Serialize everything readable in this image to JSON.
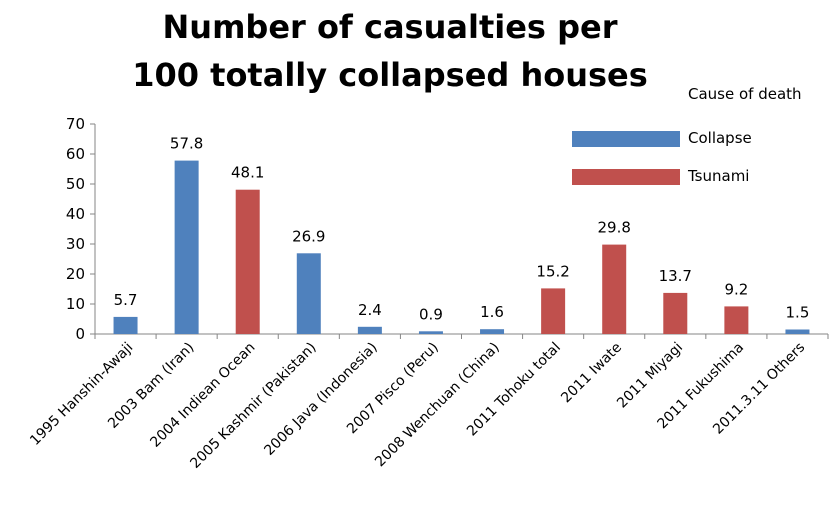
{
  "chart_data": {
    "type": "bar",
    "title_lines": [
      "Number of casualties per",
      "100 totally collapsed houses"
    ],
    "xlabel": "",
    "ylabel": "",
    "ylim": [
      0,
      70
    ],
    "yticks": [
      0,
      10,
      20,
      30,
      40,
      50,
      60,
      70
    ],
    "grid": false,
    "legend": {
      "title": "Cause of death",
      "position": "top-right",
      "entries": [
        {
          "name": "Collapse",
          "color": "#4F81BD"
        },
        {
          "name": "Tsunami",
          "color": "#C0504D"
        }
      ]
    },
    "categories": [
      "1995 Hanshin-Awaji",
      "2003 Bam (Iran)",
      "2004 Indiean Ocean",
      "2005 Kashmir (Pakistan)",
      "2006 Java (Indonesia)",
      "2007 Pisco (Peru)",
      "2008 Wenchuan (China)",
      "2011 Tohoku total",
      "2011 Iwate",
      "2011 Miyagi",
      "2011 Fukushima",
      "2011.3.11 Others"
    ],
    "values": [
      5.7,
      57.8,
      48.1,
      26.9,
      2.4,
      0.9,
      1.6,
      15.2,
      29.8,
      13.7,
      9.2,
      1.5
    ],
    "value_labels": [
      "5.7",
      "57.8",
      "48.1",
      "26.9",
      "2.4",
      "0.9",
      "1.6",
      "15.2",
      "29.8",
      "13.7",
      "9.2",
      "1.5"
    ],
    "cause": [
      "Collapse",
      "Collapse",
      "Tsunami",
      "Collapse",
      "Collapse",
      "Collapse",
      "Collapse",
      "Tsunami",
      "Tsunami",
      "Tsunami",
      "Tsunami",
      "Collapse"
    ]
  }
}
